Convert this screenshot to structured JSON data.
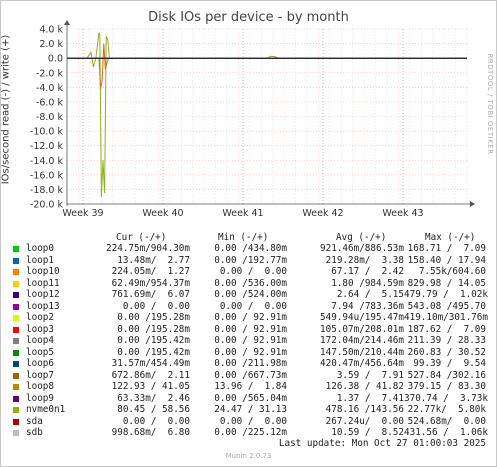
{
  "chart_data": {
    "type": "line",
    "title": "Disk IOs per device - by month",
    "ylabel": "IOs/second read (-) / write (+)",
    "watermark": "RRDTOOL / TOBI OETIKER",
    "ylim": [
      -20000,
      4000
    ],
    "yticks": [
      {
        "v": 4000,
        "label": "4.0 k"
      },
      {
        "v": 2000,
        "label": "2.0 k"
      },
      {
        "v": 0,
        "label": "0.0"
      },
      {
        "v": -2000,
        "label": "-2.0 k"
      },
      {
        "v": -4000,
        "label": "-4.0 k"
      },
      {
        "v": -6000,
        "label": "-6.0 k"
      },
      {
        "v": -8000,
        "label": "-8.0 k"
      },
      {
        "v": -10000,
        "label": "-10.0 k"
      },
      {
        "v": -12000,
        "label": "-12.0 k"
      },
      {
        "v": -14000,
        "label": "-14.0 k"
      },
      {
        "v": -16000,
        "label": "-16.0 k"
      },
      {
        "v": -18000,
        "label": "-18.0 k"
      },
      {
        "v": -20000,
        "label": "-20.0 k"
      }
    ],
    "xlim": [
      0,
      5
    ],
    "xticks": [
      {
        "v": 0.2,
        "label": "Week 39"
      },
      {
        "v": 1.2,
        "label": "Week 40"
      },
      {
        "v": 2.2,
        "label": "Week 41"
      },
      {
        "v": 3.2,
        "label": "Week 42"
      },
      {
        "v": 4.2,
        "label": "Week 43"
      }
    ],
    "series": [
      {
        "name": "nvme0n1",
        "color": "#8fb021",
        "points": [
          [
            0,
            0
          ],
          [
            0.25,
            0
          ],
          [
            0.3,
            800
          ],
          [
            0.33,
            -1200
          ],
          [
            0.36,
            0
          ],
          [
            0.4,
            3500
          ],
          [
            0.41,
            3200
          ],
          [
            0.43,
            -19000
          ],
          [
            0.45,
            -14000
          ],
          [
            0.47,
            -18500
          ],
          [
            0.49,
            3000
          ],
          [
            0.51,
            2500
          ],
          [
            0.53,
            0
          ],
          [
            0.7,
            0
          ],
          [
            2.5,
            0
          ],
          [
            2.55,
            250
          ],
          [
            2.6,
            200
          ],
          [
            2.65,
            0
          ],
          [
            3.0,
            0
          ],
          [
            5,
            0
          ]
        ]
      },
      {
        "name": "loop7",
        "color": "#cc7016",
        "points": [
          [
            0,
            0
          ],
          [
            0.4,
            0
          ],
          [
            0.42,
            -4200
          ],
          [
            0.44,
            -3000
          ],
          [
            0.46,
            2000
          ],
          [
            0.48,
            -1500
          ],
          [
            0.5,
            -600
          ],
          [
            0.52,
            0
          ],
          [
            5,
            0
          ]
        ]
      },
      {
        "name": "sda",
        "color": "#cc0000",
        "points": [
          [
            0,
            0
          ],
          [
            5,
            0
          ]
        ]
      },
      {
        "name": "loop13",
        "color": "#7648ec",
        "points": [
          [
            0,
            0
          ],
          [
            5,
            0
          ]
        ]
      },
      {
        "name": "loop6",
        "color": "#0f4c72",
        "points": [
          [
            0,
            0
          ],
          [
            5,
            0
          ]
        ]
      },
      {
        "name": "sdb",
        "color": "#999999",
        "points": [
          [
            0,
            0
          ],
          [
            5,
            0
          ]
        ]
      }
    ]
  },
  "legend": {
    "headers": {
      "cur": "Cur (-/+)",
      "min": "Min (-/+)",
      "avg": "Avg (-/+)",
      "max": "Max (-/+)"
    },
    "rows": [
      {
        "name": "loop0",
        "color": "#00cc00",
        "cur": "224.75m/904.30m",
        "min": "0.00 /434.80m",
        "avg": "921.46m/886.53m",
        "max": "168.71 /  7.09"
      },
      {
        "name": "loop1",
        "color": "#0066b3",
        "cur": "13.48m/  2.77",
        "min": "0.00 /192.77m",
        "avg": "219.28m/  3.38",
        "max": "158.40 / 17.94"
      },
      {
        "name": "loop10",
        "color": "#ff8000",
        "cur": "224.05m/  1.27",
        "min": "0.00 /  0.00",
        "avg": "67.17 /  2.42",
        "max": "7.55k/604.60"
      },
      {
        "name": "loop11",
        "color": "#ffcc00",
        "cur": "62.49m/954.37m",
        "min": "0.00 /536.00m",
        "avg": "1.80 /984.59m",
        "max": "829.98 / 14.05"
      },
      {
        "name": "loop12",
        "color": "#330099",
        "cur": "761.69m/  6.07",
        "min": "0.00 /524.00m",
        "avg": "2.64 /  5.15",
        "max": "479.79 /  1.02k"
      },
      {
        "name": "loop13",
        "color": "#990099",
        "cur": "0.00 /  0.00",
        "min": "0.00 /  0.00",
        "avg": "7.94 /783.36m",
        "max": "543.08 /495.70"
      },
      {
        "name": "loop2",
        "color": "#ccff00",
        "cur": "0.00 /195.28m",
        "min": "0.00 / 92.91m",
        "avg": "549.94u/195.47m",
        "max": "419.10m/301.76m"
      },
      {
        "name": "loop3",
        "color": "#ff0000",
        "cur": "0.00 /195.28m",
        "min": "0.00 / 92.91m",
        "avg": "105.07m/208.01m",
        "max": "187.62 /  7.09"
      },
      {
        "name": "loop4",
        "color": "#808080",
        "cur": "0.00 /195.42m",
        "min": "0.00 / 92.91m",
        "avg": "172.04m/214.46m",
        "max": "211.39 / 28.33"
      },
      {
        "name": "loop5",
        "color": "#008f00",
        "cur": "0.00 /195.42m",
        "min": "0.00 / 92.91m",
        "avg": "147.50m/210.44m",
        "max": "260.83 / 30.52"
      },
      {
        "name": "loop6",
        "color": "#00487d",
        "cur": "31.57m/454.49m",
        "min": "0.00 /211.98m",
        "avg": "420.47m/456.64m",
        "max": "99.39 /  9.54"
      },
      {
        "name": "loop7",
        "color": "#b35a00",
        "cur": "672.86m/  2.11",
        "min": "0.00 /667.73m",
        "avg": "3.59 /  7.91",
        "max": "527.84 /302.16"
      },
      {
        "name": "loop8",
        "color": "#b38f00",
        "cur": "122.93 / 41.05",
        "min": "13.96 /  1.84",
        "avg": "126.38 / 41.82",
        "max": "379.15 / 83.30"
      },
      {
        "name": "loop9",
        "color": "#6b006b",
        "cur": "63.33m/  2.46",
        "min": "0.00 /565.04m",
        "avg": "1.37 /  7.41",
        "max": "370.74 /  3.73k"
      },
      {
        "name": "nvme0n1",
        "color": "#8fb300",
        "cur": "80.45 / 58.56",
        "min": "24.47 / 31.13",
        "avg": "478.16 /143.56",
        "max": "22.77k/  5.80k"
      },
      {
        "name": "sda",
        "color": "#b30000",
        "cur": "0.00 /  0.00",
        "min": "0.00 /  0.00",
        "avg": "267.24u/  0.00",
        "max": "524.68m/  0.00"
      },
      {
        "name": "sdb",
        "color": "#bebebe",
        "cur": "998.68m/  6.80",
        "min": "0.00 /225.12m",
        "avg": "10.59 /  8.52",
        "max": "431.56 /  1.06k"
      }
    ]
  },
  "footer": {
    "last_update": "Last update: Mon Oct 27 01:00:03 2025",
    "munin": "Munin 2.0.73"
  }
}
